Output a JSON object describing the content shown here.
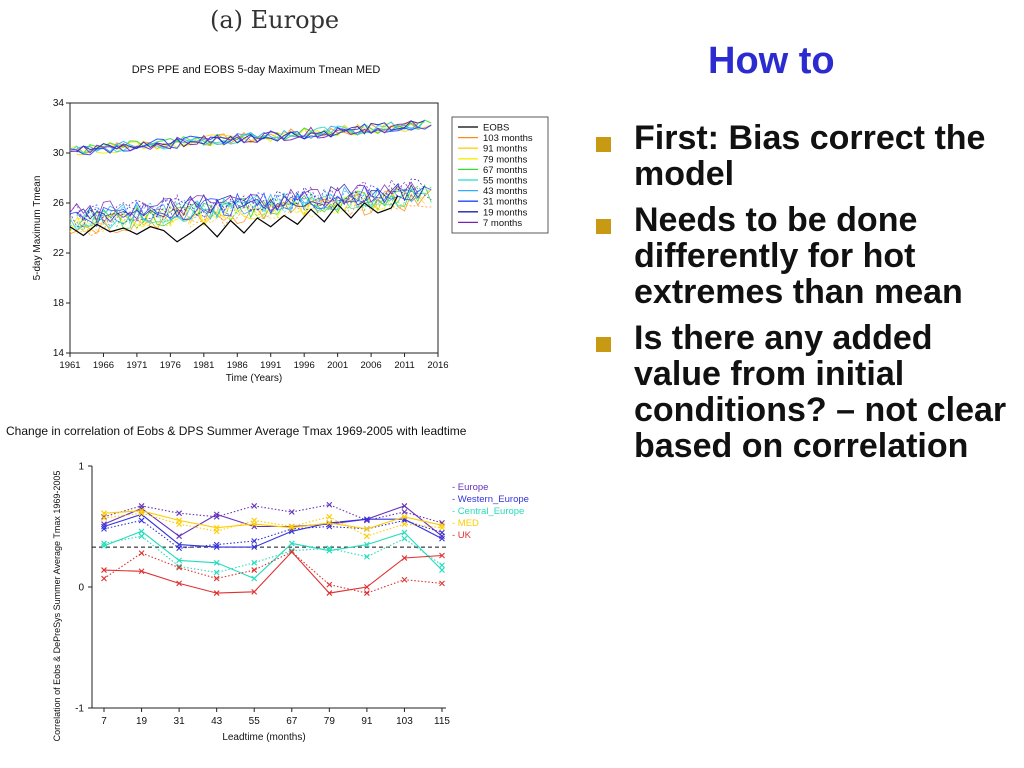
{
  "panel_label": "(a)  Europe",
  "slide_title": "How to",
  "bullets": [
    "First: Bias correct the model",
    "Needs to be done differently for hot extremes than mean",
    "Is there any added value from initial conditions? – not clear based on correlation"
  ],
  "chart_data": [
    {
      "type": "line",
      "title": "DPS PPE and EOBS 5-day Maximum Tmean MED",
      "xlabel": "Time (Years)",
      "ylabel": "5-day Maximum Tmean",
      "xlim": [
        1961,
        2016
      ],
      "ylim": [
        14,
        34
      ],
      "x_ticks": [
        1961,
        1966,
        1971,
        1976,
        1981,
        1986,
        1991,
        1996,
        2001,
        2006,
        2011,
        2016
      ],
      "y_ticks": [
        14,
        18,
        22,
        26,
        30,
        34
      ],
      "legend_position": "right",
      "series": [
        {
          "name": "EOBS",
          "color": "#000000",
          "style": "solid",
          "x": [
            1961,
            1963,
            1965,
            1967,
            1969,
            1971,
            1973,
            1975,
            1977,
            1979,
            1981,
            1983,
            1985,
            1987,
            1989,
            1991,
            1993,
            1995,
            1997,
            1999,
            2001,
            2003,
            2005,
            2007,
            2009,
            2010
          ],
          "y": [
            24.1,
            23.4,
            24.3,
            23.7,
            24.0,
            23.5,
            24.1,
            23.8,
            22.9,
            23.6,
            24.4,
            23.3,
            24.6,
            23.6,
            24.8,
            24.1,
            25.0,
            24.3,
            25.5,
            24.5,
            25.9,
            24.8,
            26.0,
            25.2,
            25.6,
            26.6
          ]
        },
        {
          "name": "103 months",
          "color": "#ff8c1a"
        },
        {
          "name": "91 months",
          "color": "#ffd11a"
        },
        {
          "name": "79 months",
          "color": "#f2f200"
        },
        {
          "name": "67 months",
          "color": "#33dd33"
        },
        {
          "name": "55 months",
          "color": "#22ddcc"
        },
        {
          "name": "43 months",
          "color": "#33aaff"
        },
        {
          "name": "31 months",
          "color": "#2244ff"
        },
        {
          "name": "19 months",
          "color": "#2020b0"
        },
        {
          "name": "7 months",
          "color": "#7a22b8"
        }
      ],
      "model_upper": {
        "x_start": 1961,
        "x_end": 2015,
        "y_start": 30.2,
        "y_end": 32.3
      },
      "model_lower": {
        "x_start": 1961,
        "x_end": 2015,
        "y_start": 24.6,
        "y_end": 26.8
      }
    },
    {
      "type": "line",
      "title": "Change in correlation of Eobs & DPS Summer Average Tmax 1969-2005 with leadtime",
      "xlabel": "Leadtime (months)",
      "ylabel": "Correlation of Eobs & DePreSys Summer Average Tmax 1969-2005",
      "ylim": [
        -1,
        1
      ],
      "y_ticks": [
        -1,
        0,
        1
      ],
      "categories": [
        7,
        19,
        31,
        43,
        55,
        67,
        79,
        91,
        103,
        115
      ],
      "reference_line": 0.33,
      "legend_position": "top-right",
      "series": [
        {
          "name": "Europe",
          "color": "#6633bb",
          "solid": [
            0.52,
            0.65,
            0.42,
            0.6,
            0.5,
            0.5,
            0.52,
            0.56,
            0.67,
            0.42
          ],
          "dotted": [
            0.58,
            0.67,
            0.61,
            0.58,
            0.67,
            0.62,
            0.68,
            0.55,
            0.62,
            0.53
          ]
        },
        {
          "name": "Western_Europe",
          "color": "#3333dd",
          "solid": [
            0.5,
            0.6,
            0.35,
            0.33,
            0.33,
            0.46,
            0.53,
            0.56,
            0.56,
            0.4
          ],
          "dotted": [
            0.48,
            0.55,
            0.32,
            0.35,
            0.38,
            0.48,
            0.5,
            0.48,
            0.55,
            0.45
          ]
        },
        {
          "name": "Central_Europe",
          "color": "#22ddbb",
          "solid": [
            0.34,
            0.46,
            0.22,
            0.2,
            0.07,
            0.36,
            0.3,
            0.35,
            0.45,
            0.14
          ],
          "dotted": [
            0.36,
            0.42,
            0.17,
            0.12,
            0.2,
            0.3,
            0.32,
            0.25,
            0.4,
            0.18
          ]
        },
        {
          "name": "MED",
          "color": "#ffcc00",
          "solid": [
            0.61,
            0.63,
            0.55,
            0.49,
            0.52,
            0.49,
            0.53,
            0.48,
            0.58,
            0.51
          ],
          "dotted": [
            0.57,
            0.61,
            0.52,
            0.46,
            0.55,
            0.5,
            0.58,
            0.42,
            0.52,
            0.49
          ]
        },
        {
          "name": "UK",
          "color": "#e03030",
          "solid": [
            0.14,
            0.13,
            0.03,
            -0.05,
            -0.04,
            0.29,
            -0.05,
            0.0,
            0.24,
            0.26
          ],
          "dotted": [
            0.07,
            0.28,
            0.16,
            0.07,
            0.14,
            0.29,
            0.02,
            -0.05,
            0.06,
            0.03
          ]
        }
      ]
    }
  ]
}
